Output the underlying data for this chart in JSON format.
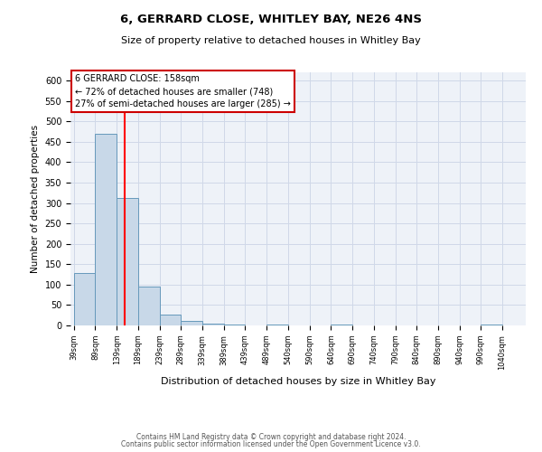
{
  "title": "6, GERRARD CLOSE, WHITLEY BAY, NE26 4NS",
  "subtitle": "Size of property relative to detached houses in Whitley Bay",
  "xlabel": "Distribution of detached houses by size in Whitley Bay",
  "ylabel": "Number of detached properties",
  "bar_edges": [
    39,
    89,
    139,
    189,
    239,
    289,
    339,
    389,
    439,
    489,
    540,
    590,
    640,
    690,
    740,
    790,
    840,
    890,
    940,
    990,
    1040
  ],
  "bar_heights": [
    128,
    470,
    312,
    96,
    27,
    12,
    5,
    2,
    0,
    2,
    0,
    0,
    3,
    0,
    0,
    0,
    0,
    0,
    0,
    2
  ],
  "bar_color": "#c8d8e8",
  "bar_edge_color": "#6699bb",
  "red_line_x": 158,
  "ylim": [
    0,
    620
  ],
  "yticks": [
    0,
    50,
    100,
    150,
    200,
    250,
    300,
    350,
    400,
    450,
    500,
    550,
    600
  ],
  "xtick_labels": [
    "39sqm",
    "89sqm",
    "139sqm",
    "189sqm",
    "239sqm",
    "289sqm",
    "339sqm",
    "389sqm",
    "439sqm",
    "489sqm",
    "540sqm",
    "590sqm",
    "640sqm",
    "690sqm",
    "740sqm",
    "790sqm",
    "840sqm",
    "890sqm",
    "940sqm",
    "990sqm",
    "1040sqm"
  ],
  "annotation_title": "6 GERRARD CLOSE: 158sqm",
  "annotation_line1": "← 72% of detached houses are smaller (748)",
  "annotation_line2": "27% of semi-detached houses are larger (285) →",
  "annotation_box_color": "#ffffff",
  "annotation_box_edge": "#cc0000",
  "grid_color": "#d0d8e8",
  "background_color": "#eef2f8",
  "footer_line1": "Contains HM Land Registry data © Crown copyright and database right 2024.",
  "footer_line2": "Contains public sector information licensed under the Open Government Licence v3.0."
}
